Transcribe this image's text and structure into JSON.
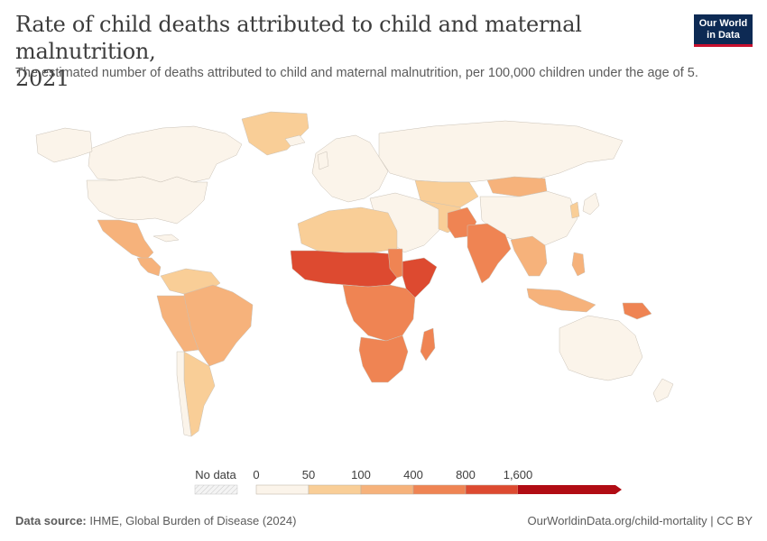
{
  "header": {
    "title_line1": "Rate of child deaths attributed to child and maternal malnutrition,",
    "title_line2": "2021",
    "subtitle": "The estimated number of deaths attributed to child and maternal malnutrition, per 100,000 children under the age of 5."
  },
  "logo": {
    "line1": "Our World",
    "line2": "in Data",
    "bg": "#0d2a54",
    "accent": "#c8102e"
  },
  "legend": {
    "no_data_label": "No data",
    "ticks": [
      "0",
      "50",
      "100",
      "400",
      "800",
      "1,600"
    ],
    "bins": [
      {
        "from": 0,
        "to": 50,
        "color": "#fbf4ea"
      },
      {
        "from": 50,
        "to": 100,
        "color": "#f9ce97"
      },
      {
        "from": 100,
        "to": 400,
        "color": "#f6b27b"
      },
      {
        "from": 400,
        "to": 800,
        "color": "#ef8453"
      },
      {
        "from": 800,
        "to": 1600,
        "color": "#dd4a30"
      },
      {
        "from": 1600,
        "to": null,
        "color": "#b10c14"
      }
    ]
  },
  "footer": {
    "source_label": "Data source:",
    "source_text": "IHME, Global Burden of Disease (2024)",
    "url_text": "OurWorldinData.org/child-mortality | CC BY"
  }
}
